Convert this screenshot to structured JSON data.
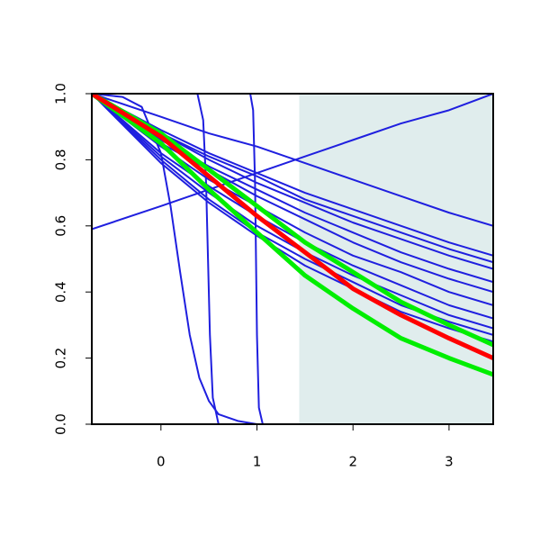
{
  "chart_data": {
    "type": "line",
    "x": [
      -0.72,
      0,
      0.5,
      1,
      1.5,
      2,
      2.5,
      3,
      3.46
    ],
    "xlim": [
      -0.72,
      3.46
    ],
    "ylim": [
      0,
      1
    ],
    "xticks": [
      0,
      1,
      2,
      3
    ],
    "yticks": [
      {
        "value": 0,
        "label": "0.0"
      },
      0.2,
      0.4,
      0.6,
      0.8,
      {
        "value": 1,
        "label": "1.0"
      }
    ],
    "shaded_x": [
      1.44,
      3.46
    ],
    "shade_color": "#e0eded",
    "series": [
      {
        "color": "#1f1fdf",
        "values": [
          0.59,
          0.66,
          0.71,
          0.76,
          0.81,
          0.86,
          0.91,
          0.95,
          1.0
        ]
      },
      {
        "color": "#1f1fdf",
        "values": [
          1,
          0.93,
          0.88,
          0.84,
          0.79,
          0.74,
          0.69,
          0.64,
          0.6
        ]
      },
      {
        "color": "#1f1fdf",
        "values": [
          1,
          0.89,
          0.82,
          0.76,
          0.7,
          0.65,
          0.6,
          0.55,
          0.51
        ]
      },
      {
        "color": "#1f1fdf",
        "values": [
          1,
          0.88,
          0.81,
          0.75,
          0.68,
          0.63,
          0.58,
          0.53,
          0.49
        ]
      },
      {
        "color": "#1f1fdf",
        "values": [
          1,
          0.88,
          0.8,
          0.73,
          0.67,
          0.61,
          0.56,
          0.51,
          0.47
        ]
      },
      {
        "color": "#1f1fdf",
        "values": [
          1,
          0.86,
          0.78,
          0.71,
          0.64,
          0.58,
          0.52,
          0.47,
          0.43
        ]
      },
      {
        "color": "#1f1fdf",
        "values": [
          1,
          0.85,
          0.77,
          0.69,
          0.62,
          0.55,
          0.49,
          0.44,
          0.4
        ]
      },
      {
        "color": "#1f1fdf",
        "values": [
          1,
          0.84,
          0.74,
          0.66,
          0.58,
          0.51,
          0.46,
          0.4,
          0.36
        ]
      },
      {
        "color": "#1f1fdf",
        "values": [
          1,
          0.82,
          0.72,
          0.63,
          0.55,
          0.48,
          0.42,
          0.36,
          0.32
        ]
      },
      {
        "color": "#1f1fdf",
        "values": [
          1,
          0.81,
          0.7,
          0.6,
          0.52,
          0.45,
          0.39,
          0.33,
          0.29
        ]
      },
      {
        "color": "#1f1fdf",
        "values": [
          1,
          0.8,
          0.68,
          0.58,
          0.5,
          0.43,
          0.36,
          0.31,
          0.27
        ]
      },
      {
        "color": "#1f1fdf",
        "values": [
          1,
          0.79,
          0.67,
          0.57,
          0.48,
          0.41,
          0.34,
          0.29,
          0.25
        ]
      },
      {
        "color": "#1f1fdf",
        "x": [
          -0.72,
          -0.4,
          -0.2,
          0,
          0.1,
          0.2,
          0.3,
          0.4,
          0.5,
          0.6,
          0.8,
          1.0,
          3.46
        ],
        "values": [
          1,
          0.99,
          0.96,
          0.82,
          0.66,
          0.46,
          0.27,
          0.14,
          0.07,
          0.03,
          0.01,
          0,
          0
        ]
      },
      {
        "color": "#1f1fdf",
        "x": [
          -0.72,
          0.38,
          0.44,
          0.47,
          0.49,
          0.51,
          0.54,
          0.6,
          3.46
        ],
        "values": [
          1,
          1,
          0.92,
          0.73,
          0.5,
          0.27,
          0.08,
          0,
          0
        ]
      },
      {
        "color": "#1f1fdf",
        "x": [
          -0.72,
          0.93,
          0.96,
          0.98,
          0.99,
          1.0,
          1.02,
          1.06,
          3.46
        ],
        "values": [
          1,
          1,
          0.95,
          0.73,
          0.5,
          0.27,
          0.05,
          0,
          0
        ]
      },
      {
        "color": "#00ee00",
        "width": 5,
        "values": [
          1,
          0.88,
          0.77,
          0.66,
          0.55,
          0.46,
          0.37,
          0.3,
          0.24
        ]
      },
      {
        "color": "#00ee00",
        "width": 5,
        "values": [
          1,
          0.85,
          0.71,
          0.58,
          0.45,
          0.35,
          0.26,
          0.2,
          0.15
        ]
      },
      {
        "color": "#ff0000",
        "width": 5,
        "values": [
          1,
          0.87,
          0.75,
          0.63,
          0.52,
          0.41,
          0.33,
          0.26,
          0.2
        ]
      }
    ]
  }
}
